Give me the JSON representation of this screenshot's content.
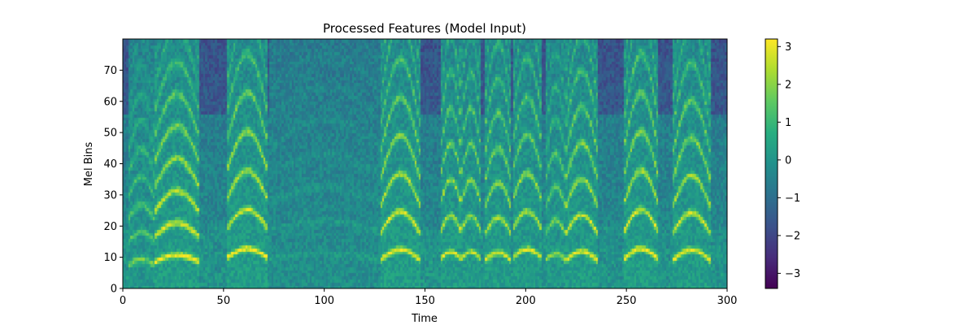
{
  "chart_data": {
    "type": "heatmap",
    "title": "Processed Features (Model Input)",
    "xlabel": "Time",
    "ylabel": "Mel Bins",
    "xlim": [
      0,
      300
    ],
    "ylim": [
      0,
      80
    ],
    "xticks": [
      "0",
      "50",
      "100",
      "150",
      "200",
      "250",
      "300"
    ],
    "yticks": [
      "0",
      "10",
      "20",
      "30",
      "40",
      "50",
      "60",
      "70"
    ],
    "colorbar": {
      "range": [
        -3.4,
        3.2
      ],
      "ticks": [
        "−3",
        "−2",
        "−1",
        "0",
        "1",
        "2",
        "3"
      ],
      "colormap": "viridis"
    },
    "grid": false,
    "segments": [
      {
        "start": 3,
        "end": 16,
        "energy": 0.6,
        "f0": 8,
        "sweep": 0.5
      },
      {
        "start": 16,
        "end": 38,
        "energy": 1.0,
        "f0": 9,
        "sweep": 0.9
      },
      {
        "start": 52,
        "end": 72,
        "energy": 1.0,
        "f0": 10.5,
        "sweep": 1.5
      },
      {
        "start": 73,
        "end": 128,
        "energy": 0.15,
        "f0": 10,
        "sweep": 0.2
      },
      {
        "start": 128,
        "end": 148,
        "energy": 1.0,
        "f0": 9.5,
        "sweep": 2.2
      },
      {
        "start": 158,
        "end": 168,
        "energy": 0.9,
        "f0": 10,
        "sweep": 1.0
      },
      {
        "start": 168,
        "end": 178,
        "energy": 0.85,
        "f0": 10,
        "sweep": 1.0
      },
      {
        "start": 180,
        "end": 193,
        "energy": 0.9,
        "f0": 9.5,
        "sweep": 1.2
      },
      {
        "start": 194,
        "end": 208,
        "energy": 0.9,
        "f0": 10.5,
        "sweep": 1.2
      },
      {
        "start": 210,
        "end": 220,
        "energy": 0.7,
        "f0": 9.5,
        "sweep": 0.8
      },
      {
        "start": 220,
        "end": 236,
        "energy": 0.95,
        "f0": 9.5,
        "sweep": 1.6
      },
      {
        "start": 249,
        "end": 266,
        "energy": 1.0,
        "f0": 10,
        "sweep": 2.0
      },
      {
        "start": 273,
        "end": 292,
        "energy": 0.95,
        "f0": 9.5,
        "sweep": 2.0
      }
    ]
  }
}
